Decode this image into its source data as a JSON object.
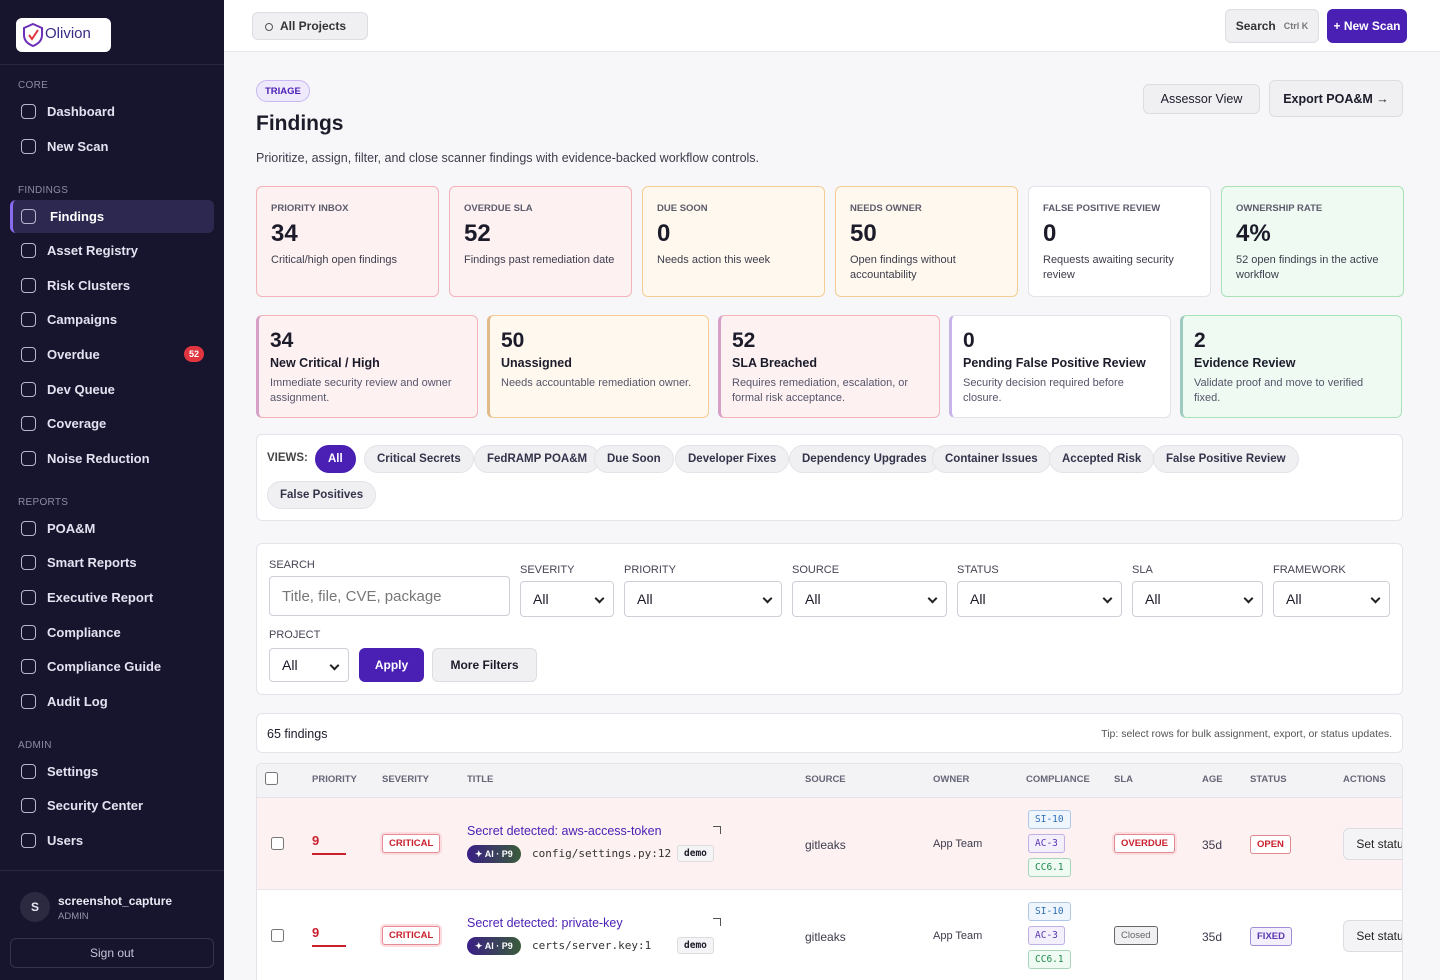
{
  "sidebar": {
    "brand": "Olivion",
    "sections": [
      {
        "title": "CORE",
        "items": [
          {
            "label": "Dashboard"
          },
          {
            "label": "New Scan"
          }
        ]
      },
      {
        "title": "FINDINGS",
        "items": [
          {
            "label": "Findings",
            "active": true
          },
          {
            "label": "Asset Registry"
          },
          {
            "label": "Risk Clusters"
          },
          {
            "label": "Campaigns"
          },
          {
            "label": "Overdue",
            "badge": 52
          },
          {
            "label": "Dev Queue"
          },
          {
            "label": "Coverage"
          },
          {
            "label": "Noise Reduction"
          }
        ]
      },
      {
        "title": "REPORTS",
        "items": [
          {
            "label": "POA&M"
          },
          {
            "label": "Smart Reports"
          },
          {
            "label": "Executive Report"
          },
          {
            "label": "Compliance"
          },
          {
            "label": "Compliance Guide"
          },
          {
            "label": "Audit Log"
          }
        ]
      },
      {
        "title": "ADMIN",
        "items": [
          {
            "label": "Settings"
          },
          {
            "label": "Security Center"
          },
          {
            "label": "Users"
          }
        ]
      }
    ],
    "user": {
      "initial": "S",
      "name": "screenshot_capture",
      "role": "ADMIN"
    },
    "sign_out": "Sign out"
  },
  "topbar": {
    "project": "All Projects",
    "search": "Search",
    "shortcut": "Ctrl K",
    "new_scan": "+ New Scan"
  },
  "header": {
    "badge": "TRIAGE",
    "title": "Findings",
    "subtitle": "Prioritize, assign, filter, and close scanner findings with evidence-backed workflow controls.",
    "actions": [
      "Assessor View",
      "Export POA&M →"
    ]
  },
  "stats": [
    {
      "label": "PRIORITY INBOX",
      "value": 34,
      "note": "Critical/high open findings",
      "tone": "red"
    },
    {
      "label": "OVERDUE SLA",
      "value": 52,
      "note": "Findings past remediation date",
      "tone": "red"
    },
    {
      "label": "DUE SOON",
      "value": 0,
      "note": "Needs action this week",
      "tone": "orange"
    },
    {
      "label": "NEEDS OWNER",
      "value": 50,
      "note": "Open findings without accountability",
      "tone": "orange"
    },
    {
      "label": "FALSE POSITIVE REVIEW",
      "value": 0,
      "note": "Requests awaiting security review",
      "tone": "white"
    },
    {
      "label": "OWNERSHIP RATE",
      "value": "4%",
      "note": "52 open findings in the active workflow",
      "tone": "green"
    }
  ],
  "queues": [
    {
      "count": 34,
      "title": "New Critical / High",
      "note": "Immediate security review and owner assignment.",
      "tone": "red"
    },
    {
      "count": 50,
      "title": "Unassigned",
      "note": "Needs accountable remediation owner.",
      "tone": "orange"
    },
    {
      "count": 52,
      "title": "SLA Breached",
      "note": "Requires remediation, escalation, or formal risk acceptance.",
      "tone": "red"
    },
    {
      "count": 0,
      "title": "Pending False Positive Review",
      "note": "Security decision required before closure.",
      "tone": "white"
    },
    {
      "count": 2,
      "title": "Evidence Review",
      "note": "Validate proof and move to verified fixed.",
      "tone": "green"
    }
  ],
  "views": {
    "label": "VIEWS:",
    "active": 0,
    "items": [
      "All",
      "Critical Secrets",
      "FedRAMP POA&M",
      "Due Soon",
      "Developer Fixes",
      "Dependency Upgrades",
      "Container Issues",
      "Accepted Risk",
      "False Positive Review",
      "False Positives"
    ]
  },
  "filters": {
    "search_label": "SEARCH",
    "search_placeholder": "Title, file, CVE, package",
    "selects": [
      {
        "label": "SEVERITY",
        "value": "All"
      },
      {
        "label": "PRIORITY",
        "value": "All"
      },
      {
        "label": "SOURCE",
        "value": "All"
      },
      {
        "label": "STATUS",
        "value": "All"
      },
      {
        "label": "SLA",
        "value": "All"
      },
      {
        "label": "FRAMEWORK",
        "value": "All"
      }
    ],
    "project": {
      "label": "PROJECT",
      "value": "All"
    },
    "apply": "Apply",
    "more": "More Filters"
  },
  "results": {
    "count": "65 findings",
    "tip": "Tip: select rows for bulk assignment, export, or status updates."
  },
  "table": {
    "columns": [
      "PRIORITY",
      "SEVERITY",
      "TITLE",
      "SOURCE",
      "OWNER",
      "COMPLIANCE",
      "SLA",
      "AGE",
      "STATUS",
      "ACTIONS"
    ],
    "rows": [
      {
        "priority": 9,
        "severity": "CRITICAL",
        "title": "Secret detected: aws-access-token",
        "ai": "✦ AI · P9",
        "file": "config/settings.py:12",
        "tag": "demo",
        "source": "gitleaks",
        "owner": "App Team",
        "compliance": [
          "SI-10",
          "AC-3",
          "CC6.1"
        ],
        "sla": "OVERDUE",
        "sla_tone": "red",
        "age": "35d",
        "status": "OPEN",
        "status_tone": "red",
        "action": "Set status",
        "highlight": true
      },
      {
        "priority": 9,
        "severity": "CRITICAL",
        "title": "Secret detected: private-key",
        "ai": "✦ AI · P9",
        "file": "certs/server.key:1",
        "tag": "demo",
        "source": "gitleaks",
        "owner": "App Team",
        "compliance": [
          "SI-10",
          "AC-3",
          "CC6.1"
        ],
        "sla": "Closed",
        "sla_tone": "grey",
        "age": "35d",
        "status": "FIXED",
        "status_tone": "purple",
        "action": "Set status",
        "highlight": false
      }
    ]
  }
}
